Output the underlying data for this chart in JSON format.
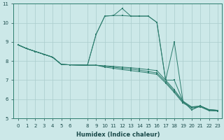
{
  "xlabel": "Humidex (Indice chaleur)",
  "bg_color": "#cce8e8",
  "grid_color": "#aacccc",
  "line_color": "#2d7d6e",
  "xlim": [
    -0.5,
    23.5
  ],
  "ylim": [
    5,
    11
  ],
  "xticks": [
    0,
    1,
    2,
    3,
    4,
    5,
    6,
    8,
    9,
    10,
    11,
    12,
    13,
    14,
    15,
    16,
    17,
    18,
    19,
    20,
    21,
    22,
    23
  ],
  "yticks": [
    5,
    6,
    7,
    8,
    9,
    10,
    11
  ],
  "line1_x": [
    0,
    1,
    2,
    3,
    4,
    5,
    6,
    8,
    9,
    10,
    11,
    12,
    13,
    14,
    15,
    16,
    17,
    18,
    19,
    20,
    21,
    22,
    23
  ],
  "line1_y": [
    8.85,
    8.65,
    8.5,
    8.35,
    8.2,
    7.82,
    7.8,
    7.78,
    9.4,
    10.35,
    10.38,
    10.75,
    10.35,
    10.35,
    10.35,
    10.02,
    7.0,
    9.0,
    5.9,
    5.45,
    5.65,
    5.45,
    5.42
  ],
  "line2_x": [
    0,
    1,
    2,
    3,
    4,
    5,
    6,
    8,
    9,
    10,
    11,
    12,
    13,
    14,
    15,
    16,
    17,
    18,
    19,
    20,
    21,
    22,
    23
  ],
  "line2_y": [
    8.85,
    8.65,
    8.5,
    8.35,
    8.2,
    7.82,
    7.8,
    7.78,
    9.4,
    10.35,
    10.38,
    10.38,
    10.35,
    10.35,
    10.35,
    10.02,
    7.0,
    7.0,
    5.9,
    5.45,
    5.65,
    5.45,
    5.42
  ],
  "line3_x": [
    0,
    1,
    2,
    3,
    4,
    5,
    6,
    8,
    9,
    10,
    11,
    12,
    13,
    14,
    15,
    16,
    17,
    18,
    19,
    20,
    21,
    22,
    23
  ],
  "line3_y": [
    8.85,
    8.65,
    8.5,
    8.35,
    8.2,
    7.82,
    7.8,
    7.78,
    7.78,
    7.75,
    7.72,
    7.68,
    7.65,
    7.6,
    7.55,
    7.5,
    7.0,
    6.5,
    5.9,
    5.6,
    5.65,
    5.45,
    5.42
  ],
  "line4_x": [
    0,
    1,
    2,
    3,
    4,
    5,
    6,
    8,
    9,
    10,
    11,
    12,
    13,
    14,
    15,
    16,
    17,
    18,
    19,
    20,
    21,
    22,
    23
  ],
  "line4_y": [
    8.85,
    8.65,
    8.5,
    8.35,
    8.2,
    7.82,
    7.8,
    7.78,
    7.78,
    7.72,
    7.68,
    7.62,
    7.58,
    7.52,
    7.45,
    7.38,
    6.92,
    6.42,
    5.85,
    5.58,
    5.62,
    5.42,
    5.4
  ],
  "line5_x": [
    0,
    1,
    2,
    3,
    4,
    5,
    6,
    8,
    9,
    10,
    11,
    12,
    13,
    14,
    15,
    16,
    17,
    18,
    19,
    20,
    21,
    22,
    23
  ],
  "line5_y": [
    8.85,
    8.65,
    8.5,
    8.35,
    8.2,
    7.82,
    7.8,
    7.78,
    7.78,
    7.68,
    7.62,
    7.55,
    7.5,
    7.44,
    7.38,
    7.3,
    6.85,
    6.35,
    5.8,
    5.55,
    5.6,
    5.4,
    5.38
  ]
}
